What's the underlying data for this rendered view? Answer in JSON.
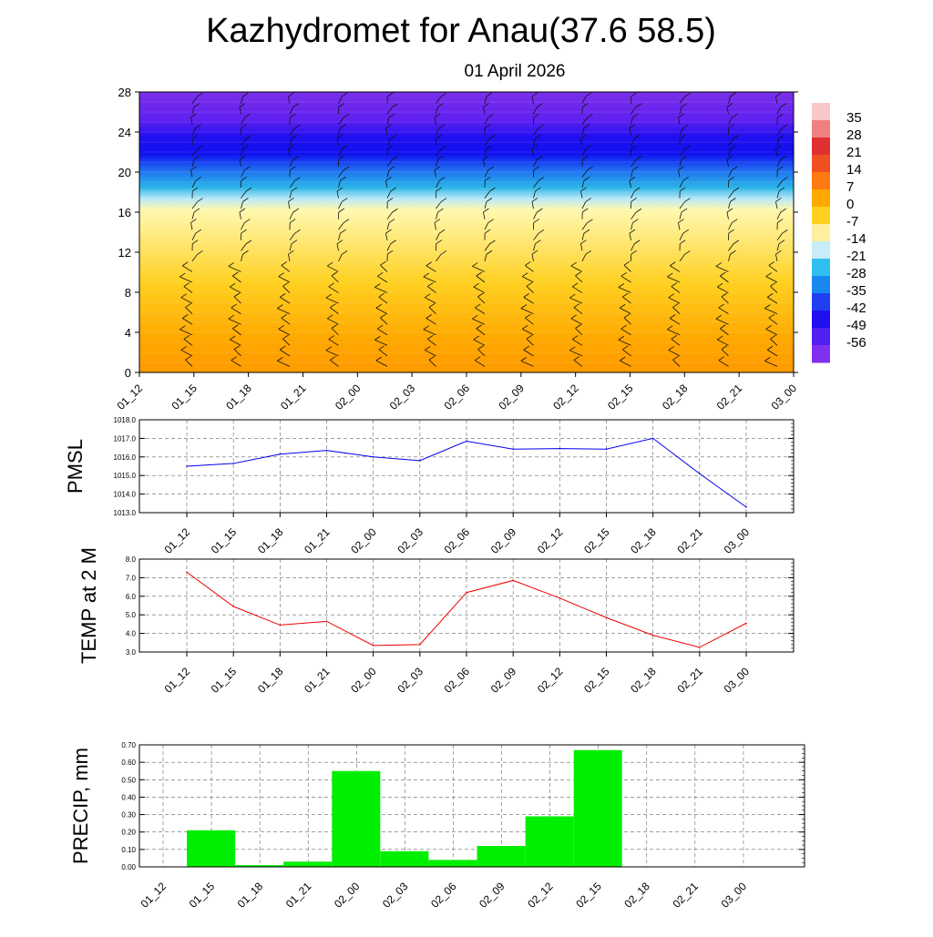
{
  "title": "Kazhydromet for Anau(37.6 58.5)",
  "subtitle": "01 April 2026",
  "time_labels": [
    "01_12",
    "01_15",
    "01_18",
    "01_21",
    "02_00",
    "02_03",
    "02_06",
    "02_09",
    "02_12",
    "02_15",
    "02_18",
    "02_21",
    "03_00"
  ],
  "chart_data": [
    {
      "type": "heatmap",
      "name": "temperature-cross-section",
      "x": [
        "01_12",
        "01_15",
        "01_18",
        "01_21",
        "02_00",
        "02_03",
        "02_06",
        "02_09",
        "02_12",
        "02_15",
        "02_18",
        "02_21",
        "03_00"
      ],
      "ylim": [
        0,
        28
      ],
      "yticks": [
        0,
        4,
        8,
        12,
        16,
        20,
        24,
        28
      ],
      "colorbar_ticks": [
        35,
        28,
        21,
        14,
        7,
        0,
        -7,
        -14,
        -21,
        -28,
        -35,
        -42,
        -49,
        -56
      ],
      "colorbar_range": [
        -63,
        42
      ],
      "colors": {
        "cold": "#7b2fe8",
        "blue": "#1010f0",
        "sky": "#29b4e8",
        "pale": "#fff8b0",
        "yellow": "#ffd020",
        "orange": "#ff9a00",
        "red": "#e01010"
      }
    },
    {
      "type": "line",
      "ylabel": "PMSL",
      "x": [
        "01_12",
        "01_15",
        "01_18",
        "01_21",
        "02_00",
        "02_03",
        "02_06",
        "02_09",
        "02_12",
        "02_15",
        "02_18",
        "02_21",
        "03_00"
      ],
      "values": [
        1015.5,
        1015.65,
        1016.15,
        1016.35,
        1016.0,
        1015.8,
        1016.85,
        1016.42,
        1016.45,
        1016.42,
        1017.0,
        1015.1,
        1013.3
      ],
      "ylim": [
        1013.0,
        1018.0
      ],
      "yticks": [
        "1013.0",
        "1014.0",
        "1015.0",
        "1016.0",
        "1017.0",
        "1018.0"
      ],
      "color": "#0000ee",
      "grid": true
    },
    {
      "type": "line",
      "ylabel": "TEMP at 2 M",
      "x": [
        "01_12",
        "01_15",
        "01_18",
        "01_21",
        "02_00",
        "02_03",
        "02_06",
        "02_09",
        "02_12",
        "02_15",
        "02_18",
        "02_21",
        "03_00"
      ],
      "values": [
        7.3,
        5.45,
        4.45,
        4.65,
        3.35,
        3.4,
        6.2,
        6.85,
        5.9,
        4.85,
        3.9,
        3.25,
        4.55
      ],
      "ylim": [
        3.0,
        8.0
      ],
      "yticks": [
        "3.0",
        "4.0",
        "5.0",
        "6.0",
        "7.0",
        "8.0"
      ],
      "color": "#ee0000",
      "grid": true
    },
    {
      "type": "bar",
      "ylabel": "PRECIP, mm",
      "categories": [
        "01_12",
        "01_15",
        "01_18",
        "01_21",
        "02_00",
        "02_03",
        "02_06",
        "02_09",
        "02_12",
        "02_15",
        "02_18",
        "02_21",
        "03_00"
      ],
      "values": [
        0,
        0.21,
        0.01,
        0.03,
        0.55,
        0.09,
        0.04,
        0.12,
        0.29,
        0.67,
        0,
        0,
        0
      ],
      "ylim": [
        0,
        0.7
      ],
      "yticks": [
        "0.00",
        "0.10",
        "0.20",
        "0.30",
        "0.40",
        "0.50",
        "0.60",
        "0.70"
      ],
      "color": "#00ee00",
      "grid": true
    }
  ]
}
